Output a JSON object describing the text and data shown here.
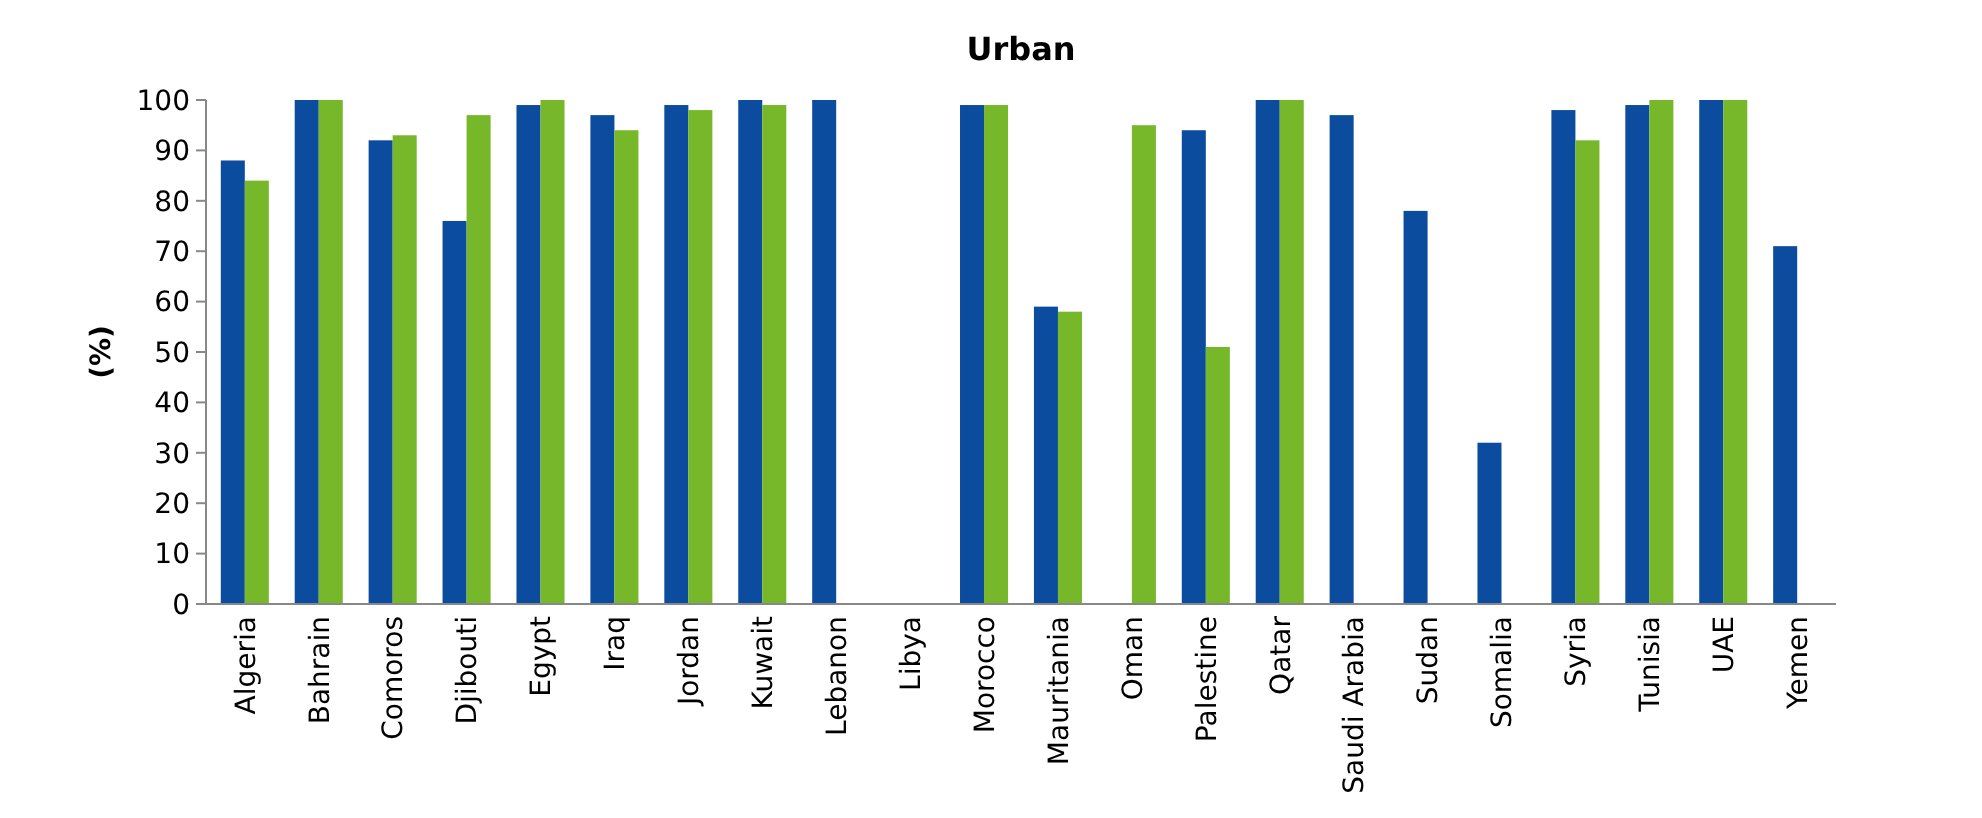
{
  "chart_data": {
    "type": "bar",
    "title": "Urban",
    "ylabel": "(%)",
    "categories": [
      "Algeria",
      "Bahrain",
      "Comoros",
      "Djibouti",
      "Egypt",
      "Iraq",
      "Jordan",
      "Kuwait",
      "Lebanon",
      "Libya",
      "Morocco",
      "Mauritania",
      "Oman",
      "Palestine",
      "Qatar",
      "Saudi Arabia",
      "Sudan",
      "Somalia",
      "Syria",
      "Tunisia",
      "UAE",
      "Yemen"
    ],
    "series": [
      {
        "color": "#0b4c9e",
        "values": [
          88,
          100,
          92,
          76,
          99,
          97,
          99,
          100,
          100,
          null,
          99,
          59,
          null,
          94,
          100,
          97,
          78,
          32,
          98,
          99,
          100,
          71
        ]
      },
      {
        "color": "#76b82a",
        "values": [
          84,
          100,
          93,
          97,
          100,
          94,
          98,
          99,
          null,
          null,
          99,
          58,
          95,
          51,
          100,
          null,
          null,
          null,
          92,
          100,
          100,
          null
        ]
      }
    ],
    "ylim": [
      0,
      100
    ],
    "yticks": [
      0,
      10,
      20,
      30,
      40,
      50,
      60,
      70,
      80,
      90,
      100
    ],
    "grid": false
  }
}
